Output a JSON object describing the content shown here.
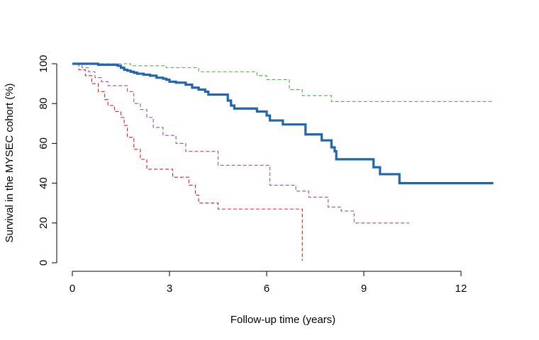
{
  "chart_data": {
    "type": "line",
    "subtype": "step",
    "title": "",
    "xlabel": "Follow-up time (years)",
    "ylabel": "Survival in the MYSEC cohort (%)",
    "xlim": [
      0,
      13
    ],
    "ylim": [
      0,
      100
    ],
    "xticks": [
      0,
      3,
      6,
      9,
      12
    ],
    "yticks": [
      0,
      20,
      40,
      60,
      80,
      100
    ],
    "grid": false,
    "legend": "none",
    "series": [
      {
        "color": "#2166ac",
        "style": "solid",
        "x": [
          0,
          0.8,
          1.4,
          1.5,
          1.6,
          1.7,
          1.8,
          1.9,
          2.0,
          2.2,
          2.4,
          2.6,
          2.8,
          2.9,
          3.0,
          3.2,
          3.5,
          3.7,
          3.9,
          4.1,
          4.2,
          4.8,
          4.9,
          5.0,
          5.2,
          5.7,
          6.0,
          6.1,
          6.5,
          7.0,
          7.2,
          7.7,
          8.0,
          8.1,
          8.15,
          8.2,
          9.3,
          9.5,
          10.1,
          13.0
        ],
        "y": [
          100,
          99.5,
          99,
          98,
          97,
          96.5,
          96,
          95.5,
          95,
          94.5,
          94,
          93,
          92.5,
          92,
          91,
          90.5,
          89.5,
          88,
          87,
          86,
          84.5,
          81.5,
          79,
          77.5,
          77.5,
          76,
          74,
          71.5,
          69.5,
          69.5,
          64.5,
          61.5,
          58,
          56,
          52,
          52,
          48,
          44.5,
          40,
          40
        ]
      },
      {
        "color": "#4daf4a",
        "style": "dashed",
        "x": [
          0,
          1.8,
          2.9,
          3.9,
          5.7,
          6.0,
          6.2,
          6.7,
          7.1,
          8.0,
          13.0
        ],
        "y": [
          100,
          99,
          98,
          96,
          94,
          92,
          92,
          87,
          84,
          81,
          81
        ]
      },
      {
        "color": "#984ea3",
        "style": "dashed",
        "x": [
          0,
          0.3,
          0.5,
          0.7,
          0.9,
          1.1,
          1.7,
          1.9,
          2.1,
          2.3,
          2.5,
          2.8,
          3.2,
          3.5,
          4.5,
          6.1,
          6.9,
          7.3,
          7.9,
          8.3,
          8.7,
          10.4
        ],
        "y": [
          100,
          98,
          96,
          93,
          91,
          89,
          86,
          80,
          77,
          73,
          68,
          64,
          60,
          56,
          49,
          39,
          36,
          33,
          28,
          26,
          20,
          20
        ]
      },
      {
        "color": "#e41a1c",
        "style": "dashed",
        "x": [
          0,
          0.2,
          0.4,
          0.6,
          0.8,
          1.0,
          1.1,
          1.3,
          1.5,
          1.6,
          1.7,
          1.9,
          2.1,
          2.3,
          3.1,
          3.6,
          3.8,
          3.9,
          4.5,
          7.1,
          7.1
        ],
        "y": [
          100,
          97,
          94,
          90,
          86,
          82,
          79,
          76,
          73,
          69,
          63,
          57,
          52,
          47,
          43,
          39,
          34,
          30,
          27,
          22,
          1
        ]
      }
    ]
  }
}
